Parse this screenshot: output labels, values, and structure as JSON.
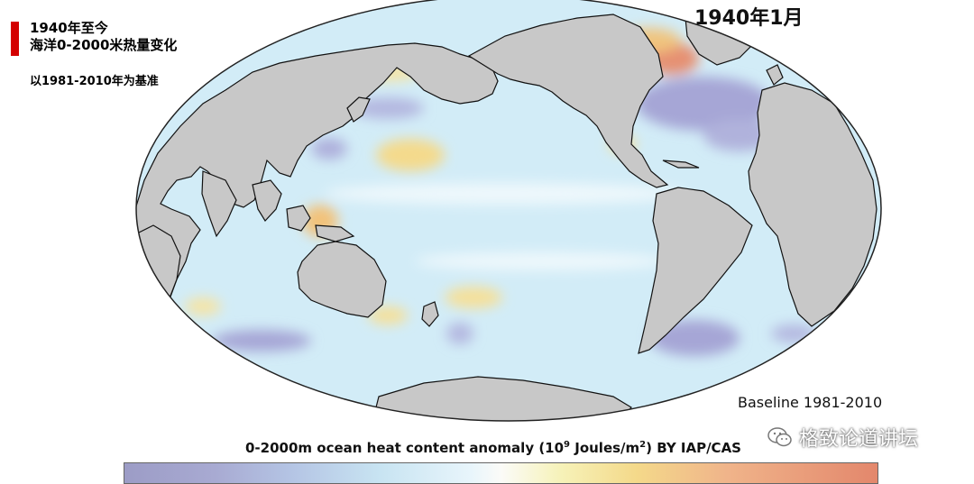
{
  "header": {
    "title_line1": "1940年至今",
    "title_line2": "海洋0-2000米热量变化",
    "subtitle": "以1981-2010年为基准",
    "date_label": "1940年1月",
    "accent_color": "#d40000"
  },
  "map": {
    "projection": "Mollweide world map",
    "land_color": "#c8c8c8",
    "ocean_base_color": "#cfeaf6",
    "warm_anomaly_color": "#f3dc8a",
    "hot_anomaly_color": "#e58a6c",
    "cool_anomaly_color": "#a8a8d8"
  },
  "labels": {
    "baseline": "Baseline 1981-2010",
    "caption_pre": "0-2000m ocean heat content anomaly (10",
    "caption_exp": "9",
    "caption_mid": " Joules/m",
    "caption_exp2": "2",
    "caption_post": ") BY IAP/CAS"
  },
  "watermark": {
    "icon": "wechat-icon",
    "name": "格致论道讲坛"
  }
}
